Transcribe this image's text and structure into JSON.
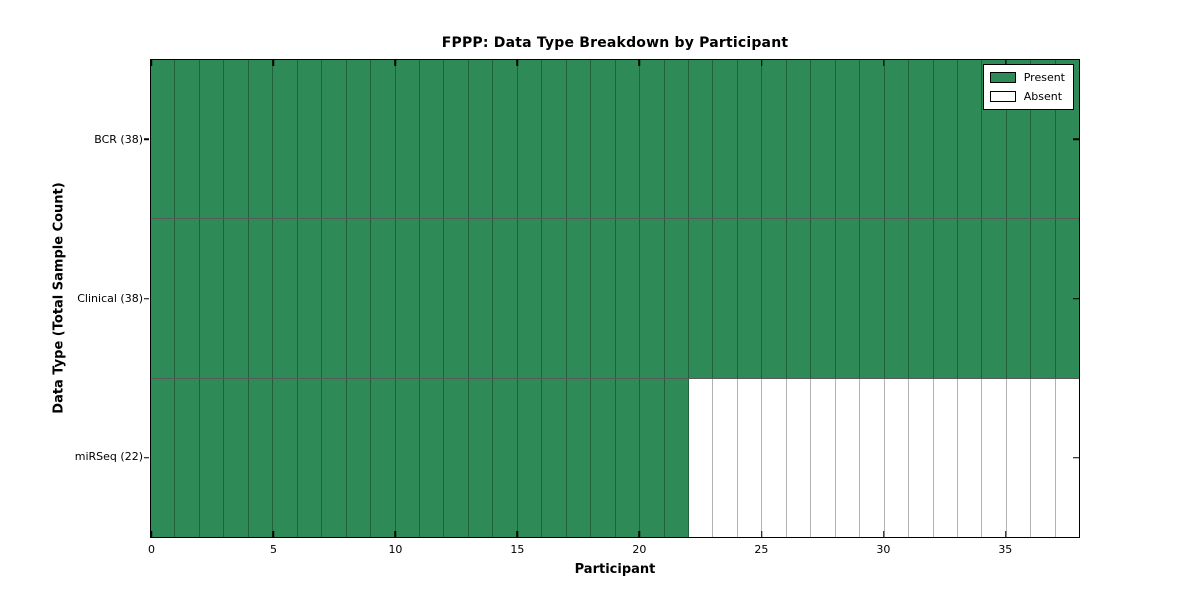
{
  "chart_data": {
    "type": "heatmap",
    "title": "FPPP: Data Type Breakdown by Participant",
    "xlabel": "Participant",
    "ylabel": "Data Type (Total Sample Count)",
    "xlim": [
      0,
      38
    ],
    "x_ticks": [
      0,
      5,
      10,
      15,
      20,
      25,
      30,
      35
    ],
    "n_participants": 38,
    "categories": [
      "BCR (38)",
      "Clinical (38)",
      "miRSeq (22)"
    ],
    "rows": [
      {
        "label": "BCR (38)",
        "data_type": "BCR",
        "total_sample_count": 38,
        "present": 38,
        "absent": 0
      },
      {
        "label": "Clinical (38)",
        "data_type": "Clinical",
        "total_sample_count": 38,
        "present": 38,
        "absent": 0
      },
      {
        "label": "miRSeq (22)",
        "data_type": "miRSeq",
        "total_sample_count": 22,
        "present": 22,
        "absent": 16
      }
    ],
    "legend": {
      "position": "upper right",
      "entries": [
        {
          "label": "Present",
          "color": "#2E8B57"
        },
        {
          "label": "Absent",
          "color": "#FFFFFF"
        }
      ]
    },
    "colors": {
      "present": "#2E8B57",
      "absent": "#FFFFFF",
      "cell_edge": "rgba(0,0,0,0.30)",
      "row_edge": "rgba(0,0,0,0.65)",
      "frame": "#000000"
    },
    "grid": true
  }
}
